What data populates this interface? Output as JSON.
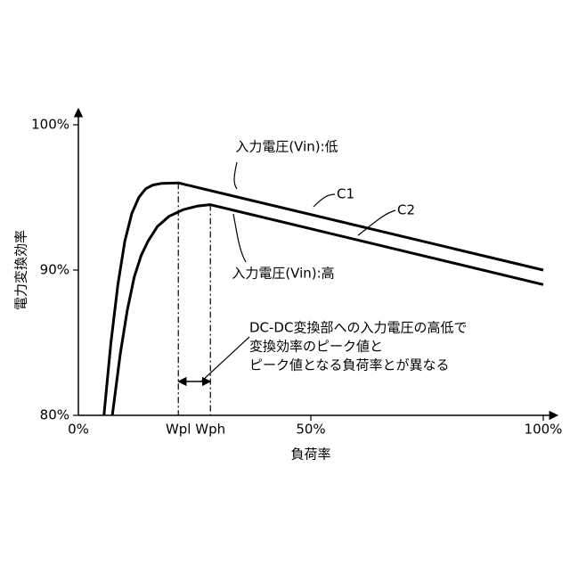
{
  "chart_data": {
    "type": "line",
    "x_label": "負荷率",
    "y_label": "電力変換効率",
    "xlim": [
      0,
      100
    ],
    "ylim": [
      80,
      100
    ],
    "xticks": [
      {
        "value": 0,
        "label": "0%"
      },
      {
        "value": 50,
        "label": "50%"
      },
      {
        "value": 100,
        "label": "100%"
      }
    ],
    "yticks": [
      {
        "value": 80,
        "label": "80%"
      },
      {
        "value": 90,
        "label": "90%"
      },
      {
        "value": 100,
        "label": "100%"
      }
    ],
    "color": "#000000",
    "series": [
      {
        "name": "C1",
        "x": [
          5.5,
          7,
          8.5,
          10,
          11.5,
          13,
          14.5,
          16,
          18,
          21.5,
          100
        ],
        "values": [
          80,
          85,
          89,
          92,
          93.9,
          95,
          95.6,
          95.85,
          95.97,
          96,
          90
        ]
      },
      {
        "name": "C2",
        "x": [
          7.3,
          9,
          10.5,
          12,
          13.5,
          15,
          17,
          19.5,
          22.5,
          25.5,
          28.4,
          100
        ],
        "values": [
          80,
          84.2,
          87.2,
          89.5,
          91,
          92,
          93,
          93.7,
          94.15,
          94.4,
          94.5,
          89
        ]
      }
    ],
    "peak_markers": [
      {
        "x": 21.5,
        "y": 96,
        "label": "Wpl"
      },
      {
        "x": 28.4,
        "y": 94.5,
        "label": "Wph"
      }
    ],
    "annotations": {
      "low_vin": "入力電圧(Vin):低",
      "high_vin": "入力電圧(Vin):高",
      "note": [
        "DC-DC変換部への入力電圧の高低で",
        "変換効率のピーク値と",
        "ピーク値となる負荷率とが異なる"
      ]
    }
  }
}
